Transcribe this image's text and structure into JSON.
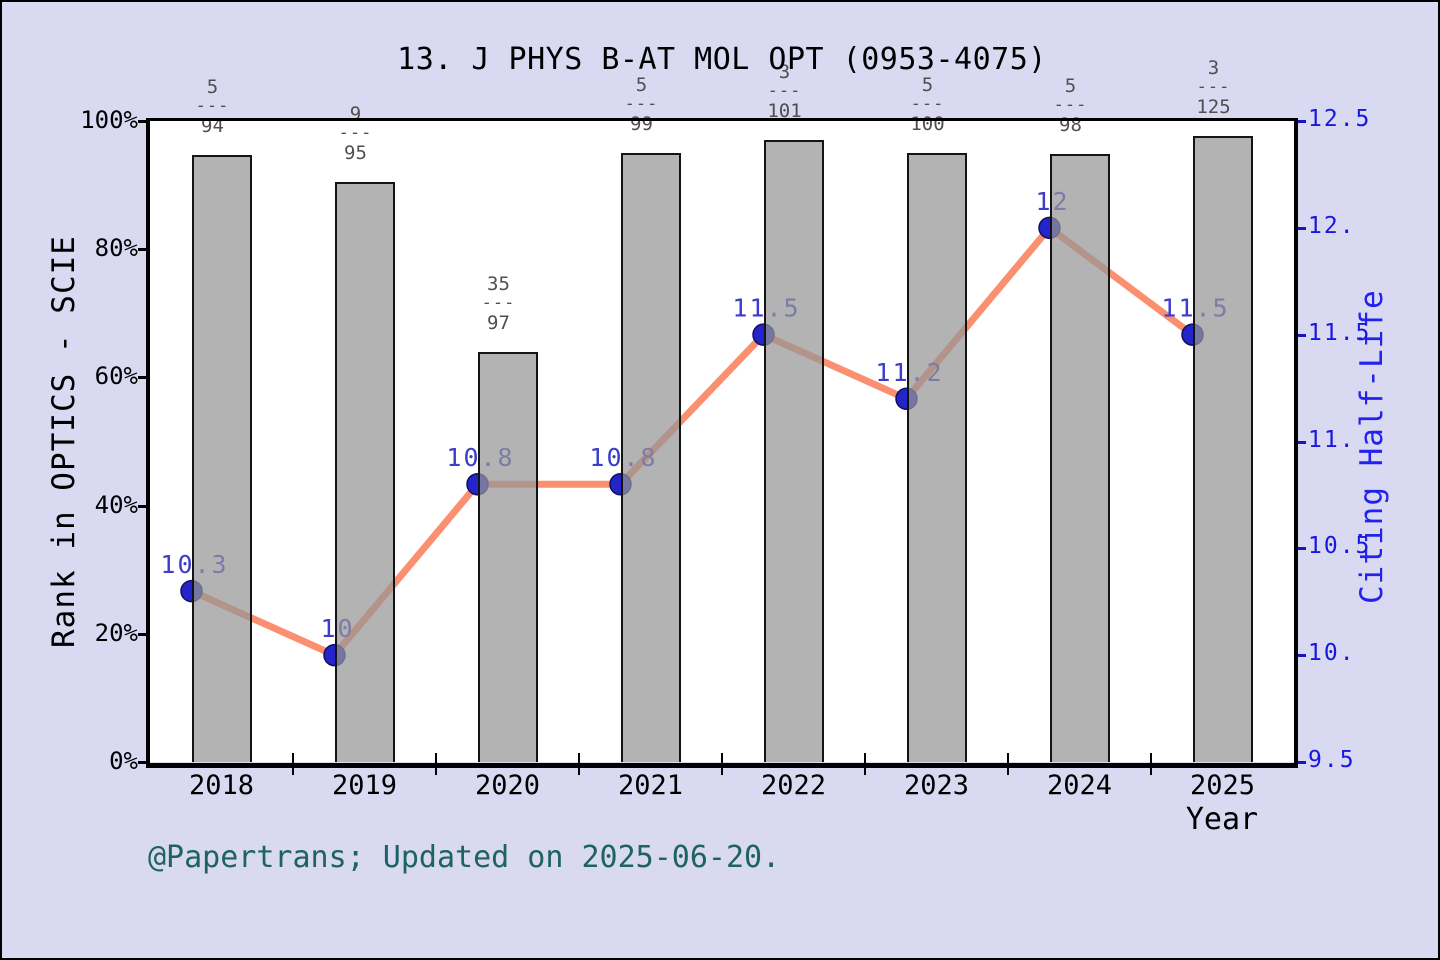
{
  "title": "13. J PHYS B-AT MOL OPT (0953-4075)",
  "footer": "@Papertrans; Updated on 2025-06-20.",
  "chart_data": {
    "type": "bar",
    "subtype": "bar+line combo, dual axis",
    "categories": [
      "2018",
      "2019",
      "2020",
      "2021",
      "2022",
      "2023",
      "2024",
      "2025"
    ],
    "xlabel": "Year",
    "left_axis": {
      "label": "Rank in OPTICS - SCIE",
      "ticks": [
        "0%",
        "20%",
        "40%",
        "60%",
        "80%",
        "100%"
      ],
      "tick_values": [
        0,
        20,
        40,
        60,
        80,
        100
      ],
      "range": [
        0,
        100
      ]
    },
    "right_axis": {
      "label": "Citing Half-Life",
      "ticks": [
        "9.5",
        "10.",
        "10.5",
        "11.",
        "11.5",
        "12.",
        "12.5"
      ],
      "tick_values": [
        9.5,
        10,
        10.5,
        11,
        11.5,
        12,
        12.5
      ],
      "range": [
        9.5,
        12.5
      ]
    },
    "series": [
      {
        "name": "Rank in OPTICS - SCIE",
        "type": "bar",
        "axis": "left",
        "rank_fractions": [
          {
            "numerator": "5",
            "denominator": "94"
          },
          {
            "numerator": "9",
            "denominator": "95"
          },
          {
            "numerator": "35",
            "denominator": "97"
          },
          {
            "numerator": "5",
            "denominator": "99"
          },
          {
            "numerator": "3",
            "denominator": "101"
          },
          {
            "numerator": "5",
            "denominator": "100"
          },
          {
            "numerator": "5",
            "denominator": "98"
          },
          {
            "numerator": "3",
            "denominator": "125"
          }
        ],
        "values_percent": [
          94.68,
          90.53,
          63.92,
          94.95,
          97.03,
          95.0,
          94.9,
          97.6
        ]
      },
      {
        "name": "Citing Half-Life",
        "type": "line",
        "axis": "right",
        "values": [
          10.3,
          10,
          10.8,
          10.8,
          11.5,
          11.2,
          12,
          11.5
        ],
        "point_labels": [
          "10.3",
          "10",
          "10.8",
          "10.8",
          "11.5",
          "11.2",
          "12",
          "11.5"
        ]
      }
    ],
    "legend": "none",
    "grid": "off",
    "fraction_dash": "---",
    "colors": {
      "figure_background": "#d9d9f2",
      "plot_background": "#ffffff",
      "bar_fill": "rgba(150,150,150,0.72)",
      "bar_edge": "#141414",
      "line": "#fa9070",
      "dot": "#2424cb",
      "point_label": "#3c3ccd",
      "right_axis_text": "#1818dd",
      "left_axis_text": "#000000",
      "fraction_text": "#4f4f4f",
      "footer_text": "#1d6363"
    }
  }
}
